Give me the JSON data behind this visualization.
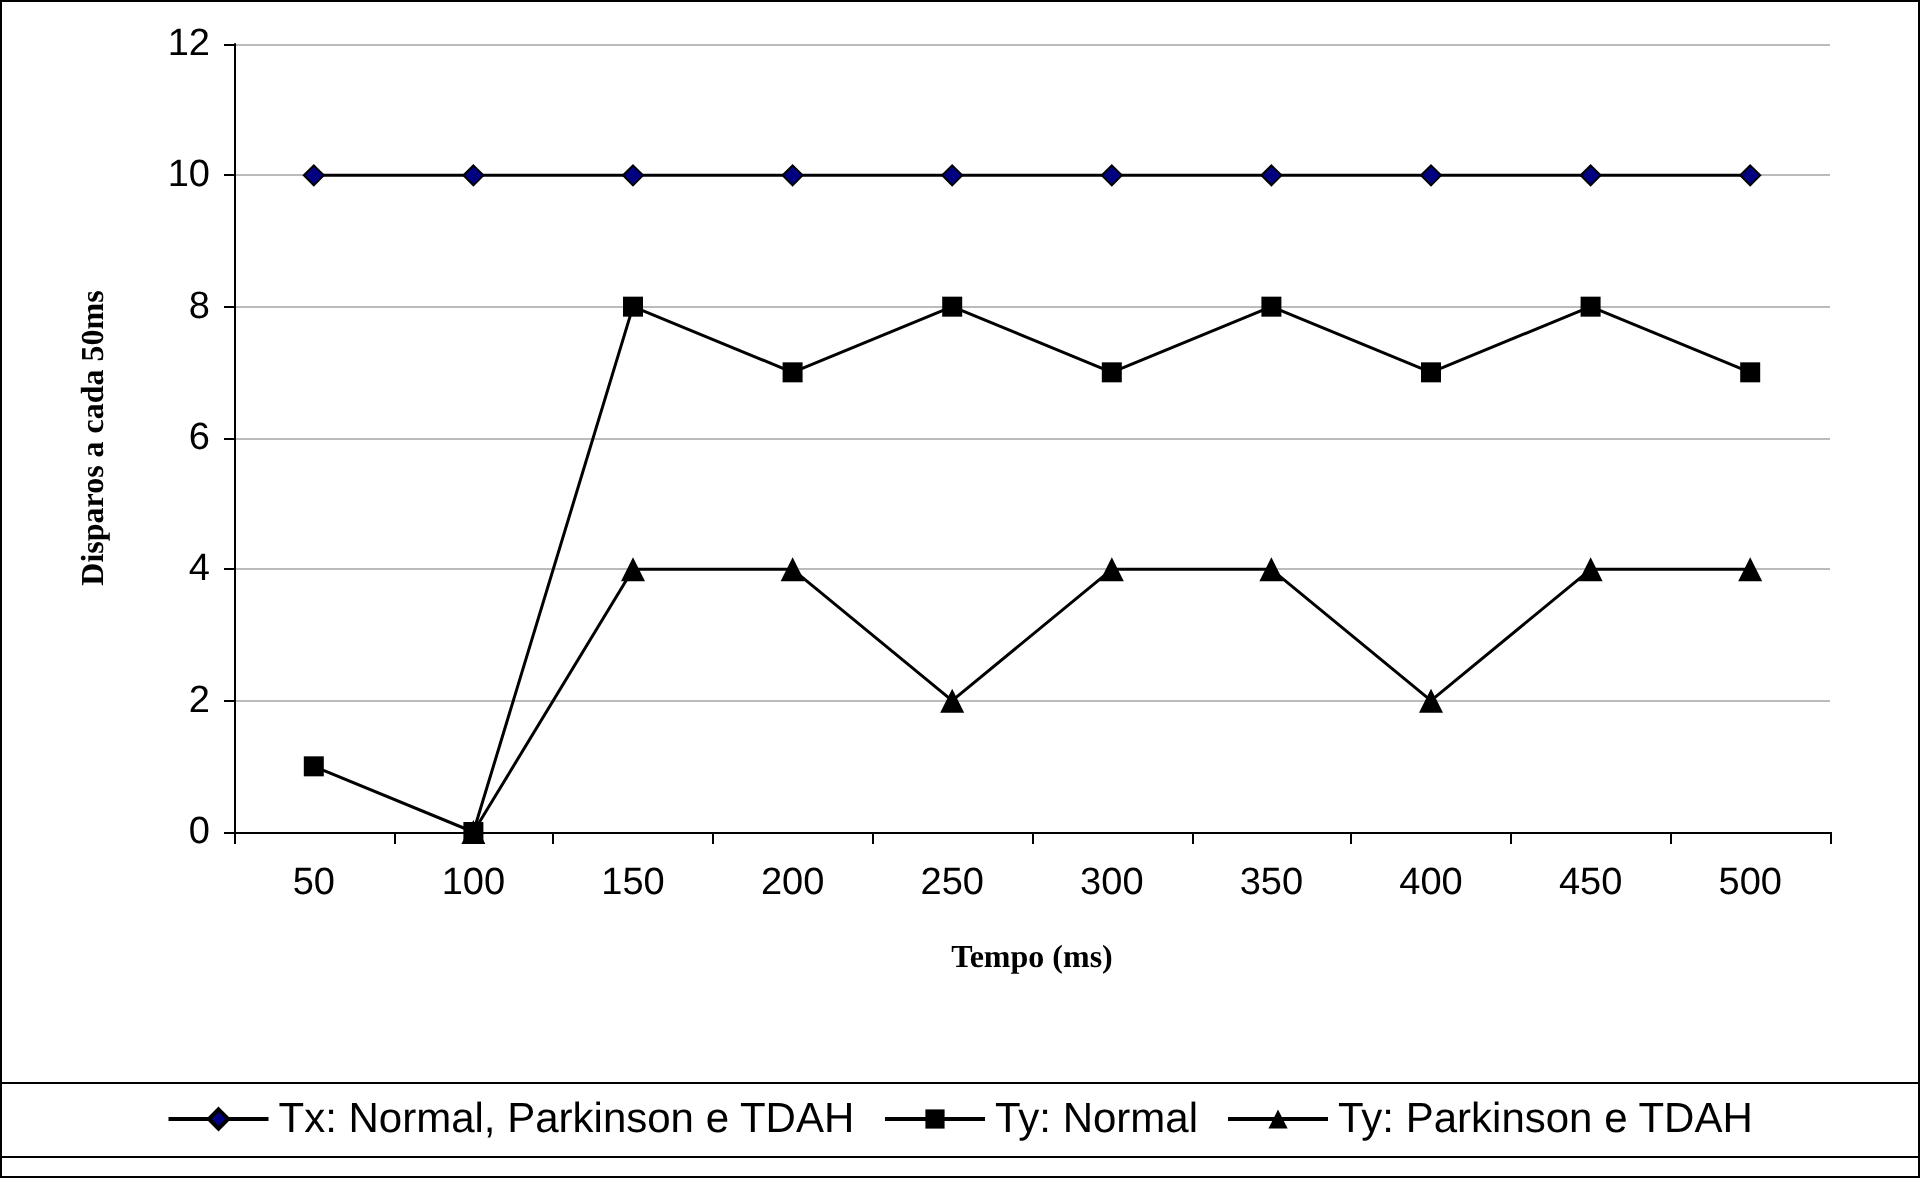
{
  "chart_data": {
    "type": "line",
    "xlabel": "Tempo (ms)",
    "ylabel": "Disparos a cada 50ms",
    "categories": [
      "50",
      "100",
      "150",
      "200",
      "250",
      "300",
      "350",
      "400",
      "450",
      "500"
    ],
    "series": [
      {
        "name": "Tx: Normal, Parkinson e TDAH",
        "color": "#000080",
        "marker": "diamond",
        "values": [
          10,
          10,
          10,
          10,
          10,
          10,
          10,
          10,
          10,
          10
        ]
      },
      {
        "name": "Ty: Normal",
        "color": "#000000",
        "marker": "square",
        "values": [
          1,
          0,
          8,
          7,
          8,
          7,
          8,
          7,
          8,
          7
        ]
      },
      {
        "name": "Ty: Parkinson e TDAH",
        "color": "#000000",
        "marker": "triangle",
        "values": [
          null,
          0,
          4,
          4,
          2,
          4,
          4,
          2,
          4,
          4
        ]
      }
    ],
    "ylim": [
      0,
      12
    ],
    "yticks": [
      0,
      2,
      4,
      6,
      8,
      10,
      12
    ],
    "grid": "y",
    "legend": "bottom",
    "line_style": "solid"
  }
}
